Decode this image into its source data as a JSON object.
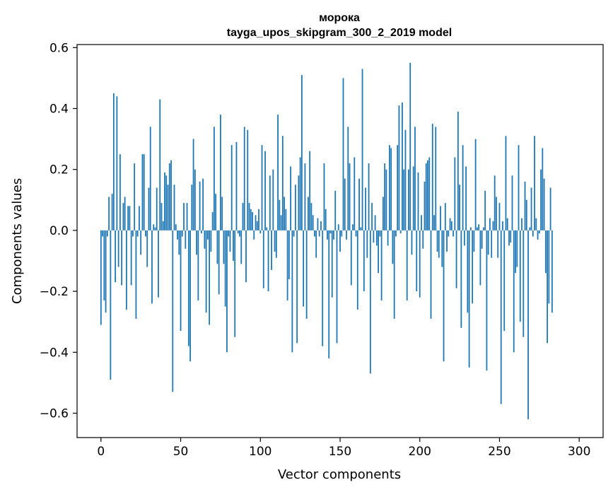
{
  "chart_data": {
    "type": "bar",
    "title": "морока",
    "subtitle": "tayga_upos_skipgram_300_2_2019 model",
    "xlabel": "Vector components",
    "ylabel": "Components values",
    "xlim": [
      -15,
      315
    ],
    "ylim": [
      -0.68,
      0.61
    ],
    "xticks": [
      0,
      50,
      100,
      150,
      200,
      250,
      300
    ],
    "yticks": [
      -0.6,
      -0.4,
      -0.2,
      0.0,
      0.2,
      0.4,
      0.6
    ],
    "ytick_labels": [
      "−0.6",
      "−0.4",
      "−0.2",
      "0.0",
      "0.2",
      "0.4",
      "0.6"
    ],
    "bar_color": "#1f77b4",
    "values": [
      -0.31,
      -0.02,
      -0.23,
      -0.27,
      -0.02,
      0.11,
      -0.49,
      0.12,
      0.45,
      -0.17,
      0.44,
      -0.12,
      0.25,
      -0.18,
      0.09,
      0.11,
      -0.26,
      0.08,
      0.08,
      -0.18,
      -0.02,
      0.22,
      -0.29,
      -0.02,
      0.08,
      -0.08,
      0.25,
      0.25,
      -0.02,
      -0.12,
      0.14,
      0.34,
      -0.24,
      0.02,
      0.01,
      0.14,
      -0.22,
      0.43,
      0.09,
      0.03,
      0.19,
      0.18,
      0.15,
      0.22,
      0.23,
      -0.53,
      0.15,
      0.02,
      -0.03,
      -0.08,
      -0.33,
      -0.02,
      0.09,
      -0.06,
      0.09,
      -0.38,
      -0.43,
      0.15,
      0.3,
      0.2,
      -0.08,
      -0.23,
      0.16,
      -0.01,
      0.17,
      -0.06,
      -0.27,
      -0.03,
      -0.31,
      -0.07,
      0.06,
      0.34,
      0.12,
      -0.11,
      -0.21,
      0.38,
      0.11,
      -0.11,
      -0.25,
      -0.4,
      -0.02,
      -0.07,
      0.28,
      -0.1,
      -0.35,
      0.29,
      -0.01,
      -0.02,
      -0.11,
      0.09,
      0.34,
      -0.17,
      0.33,
      0.09,
      0.07,
      0.06,
      -0.03,
      0.05,
      0.03,
      0.07,
      -0.01,
      0.28,
      -0.19,
      0.26,
      0.01,
      -0.2,
      0.18,
      -0.13,
      0.2,
      -0.07,
      -0.09,
      0.38,
      0.1,
      0.05,
      0.31,
      0.11,
      0.07,
      -0.23,
      -0.16,
      0.21,
      -0.4,
      -0.02,
      0.15,
      -0.37,
      0.18,
      0.24,
      0.51,
      -0.25,
      0.22,
      -0.29,
      0.11,
      0.26,
      0.09,
      0.05,
      -0.02,
      -0.09,
      0.04,
      -0.02,
      0.03,
      -0.38,
      0.22,
      0.07,
      -0.03,
      -0.42,
      -0.01,
      -0.22,
      -0.03,
      0.13,
      -0.37,
      0.02,
      -0.07,
      -0.02,
      0.5,
      0.17,
      -0.03,
      0.34,
      0.22,
      -0.18,
      0.02,
      0.24,
      -0.02,
      -0.26,
      0.17,
      0.01,
      0.53,
      -0.2,
      0.14,
      -0.09,
      0.22,
      -0.47,
      0.09,
      -0.04,
      0.05,
      -0.05,
      -0.14,
      -0.02,
      -0.23,
      0.11,
      0.22,
      0.2,
      -0.05,
      0.28,
      0.27,
      -0.11,
      -0.29,
      -0.02,
      0.28,
      0.41,
      -0.01,
      0.42,
      0.2,
      0.33,
      -0.23,
      0.2,
      0.55,
      -0.08,
      0.21,
      0.34,
      -0.2,
      0.19,
      -0.22,
      0.05,
      -0.06,
      0.16,
      0.22,
      0.23,
      0.24,
      -0.29,
      0.35,
      0.05,
      0.34,
      -0.07,
      -0.09,
      0.08,
      -0.12,
      -0.43,
      0.09,
      -0.07,
      -0.02,
      0.04,
      0.03,
      -0.02,
      0.24,
      -0.19,
      0.39,
      0.15,
      -0.32,
      0.28,
      -0.05,
      0.21,
      -0.27,
      -0.45,
      0.01,
      -0.24,
      -0.07,
      0.3,
      0.01,
      0.02,
      -0.18,
      -0.06,
      0.01,
      0.13,
      -0.46,
      -0.08,
      0.04,
      -0.09,
      0.03,
      0.18,
      0.11,
      -0.09,
      0.09,
      -0.57,
      0.03,
      -0.33,
      0.31,
      0.04,
      -0.05,
      -0.04,
      0.18,
      -0.4,
      -0.14,
      -0.12,
      0.28,
      -0.3,
      0.04,
      -0.35,
      0.16,
      0.1,
      -0.62,
      0.01,
      0.14,
      -0.02,
      0.31,
      0.04,
      -0.03,
      -0.01,
      0.2,
      0.27,
      0.17,
      -0.14,
      -0.37,
      -0.24,
      0.14,
      -0.27
    ]
  }
}
